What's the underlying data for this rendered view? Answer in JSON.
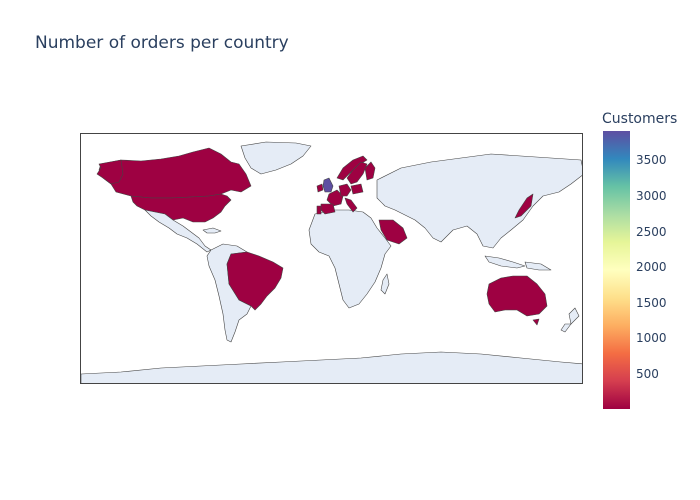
{
  "title": "Number of orders per country",
  "colorbar": {
    "title": "Customers",
    "ticks": [
      "3500",
      "3000",
      "2500",
      "2000",
      "1500",
      "1000",
      "500"
    ],
    "range": [
      0,
      3920
    ],
    "colorscale": [
      "#9e0142",
      "#d53e4f",
      "#f46d43",
      "#fdae61",
      "#fee08b",
      "#ffffbf",
      "#e6f598",
      "#abdda4",
      "#66c2a5",
      "#3288bd",
      "#5e4fa2"
    ]
  },
  "map": {
    "projection": "equirectangular",
    "land_color": "#e5ecf6",
    "border_color": "#444444",
    "highlighted_countries": [
      {
        "name": "Canada",
        "color": "#9e0142"
      },
      {
        "name": "United States",
        "color": "#9e0142"
      },
      {
        "name": "Brazil",
        "color": "#9e0142"
      },
      {
        "name": "United Kingdom",
        "color": "#5e4fa2"
      },
      {
        "name": "Ireland",
        "color": "#9e0142"
      },
      {
        "name": "Norway",
        "color": "#9e0142"
      },
      {
        "name": "Sweden",
        "color": "#9e0142"
      },
      {
        "name": "Finland",
        "color": "#9e0142"
      },
      {
        "name": "France",
        "color": "#9e0142"
      },
      {
        "name": "Germany",
        "color": "#9e0142"
      },
      {
        "name": "Spain",
        "color": "#9e0142"
      },
      {
        "name": "Portugal",
        "color": "#9e0142"
      },
      {
        "name": "Italy",
        "color": "#9e0142"
      },
      {
        "name": "Poland",
        "color": "#9e0142"
      },
      {
        "name": "Saudi Arabia",
        "color": "#9e0142"
      },
      {
        "name": "Japan",
        "color": "#9e0142"
      },
      {
        "name": "Australia",
        "color": "#9e0142"
      }
    ]
  }
}
